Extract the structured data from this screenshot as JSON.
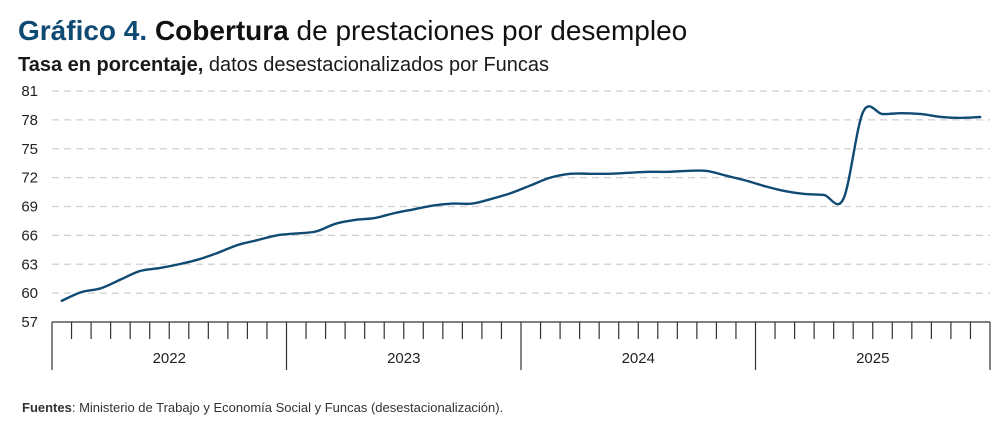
{
  "header": {
    "title_number": "Gráfico 4.",
    "title_bold": "Cobertura",
    "title_rest": "de prestaciones por desempleo",
    "subtitle_bold": "Tasa en porcentaje,",
    "subtitle_rest": "datos desestacionalizados por Funcas"
  },
  "footer": {
    "source_label": "Fuentes",
    "source_text": ": Ministerio de Trabajo y Economía Social y Funcas (desestacionalización)."
  },
  "colors": {
    "line": "#0f4a73",
    "grid": "#cfcfcf",
    "axis": "#333333",
    "title_accent": "#0f4a73"
  },
  "chart_data": {
    "type": "line",
    "title": "Cobertura de prestaciones por desempleo",
    "ylabel": "",
    "xlabel": "",
    "ylim": [
      57,
      81
    ],
    "yticks": [
      "81",
      "78",
      "75",
      "72",
      "69",
      "66",
      "63",
      "60",
      "57"
    ],
    "year_labels": [
      "2022",
      "2023",
      "2024",
      "2025"
    ],
    "grid": true,
    "x_unit": "month index from Jan 2022",
    "series": [
      {
        "values": [
          59.2,
          60.1,
          60.5,
          61.4,
          62.3,
          62.6,
          63.0,
          63.5,
          64.2,
          65.0,
          65.5,
          66.0,
          66.2,
          66.4,
          67.2,
          67.6,
          67.8,
          68.3,
          68.7,
          69.1,
          69.3,
          69.3,
          69.8,
          70.4,
          71.2,
          72.0,
          72.4,
          72.4,
          72.4,
          72.5,
          72.6,
          72.6,
          72.7,
          72.7,
          72.2,
          71.7,
          71.1,
          70.6,
          70.3,
          70.2,
          69.8,
          78.8,
          78.6,
          78.7,
          78.6,
          78.3,
          78.2,
          78.3
        ]
      }
    ]
  }
}
